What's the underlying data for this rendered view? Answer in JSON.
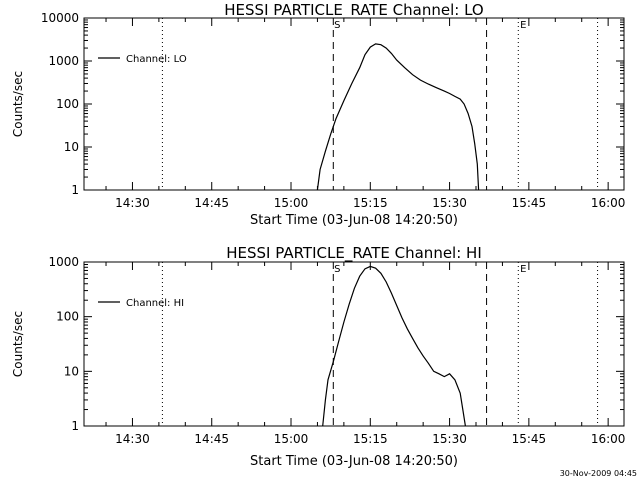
{
  "footer_text": "30-Nov-2009 04:45",
  "chart_data": [
    {
      "type": "line",
      "title": "HESSI PARTICLE_RATE Channel: LO",
      "xlabel": "Start Time (03-Jun-08 14:20:50)",
      "ylabel": "Counts/sec",
      "y_scale": "log",
      "ylim": [
        1,
        10000
      ],
      "xlim": [
        "14:20:50",
        "16:03:00"
      ],
      "x_ticks": [
        "14:30",
        "14:45",
        "15:00",
        "15:15",
        "15:30",
        "15:45",
        "16:00"
      ],
      "y_ticks": [
        "1",
        "10",
        "100",
        "1000",
        "10000"
      ],
      "legend": {
        "label": "Channel: LO",
        "position": "top-left"
      },
      "markers": {
        "start": "S",
        "end": "E"
      },
      "vlines_dashed": [
        "15:08:00",
        "15:37:00"
      ],
      "vlines_dotted": [
        "14:35:40",
        "15:43:00",
        "15:58:00"
      ],
      "series": [
        {
          "name": "Channel: LO",
          "points": [
            [
              "15:05:00",
              1
            ],
            [
              "15:05:30",
              3
            ],
            [
              "15:06:30",
              8
            ],
            [
              "15:07:30",
              20
            ],
            [
              "15:08:30",
              45
            ],
            [
              "15:10:00",
              120
            ],
            [
              "15:11:30",
              300
            ],
            [
              "15:13:00",
              700
            ],
            [
              "15:14:00",
              1400
            ],
            [
              "15:15:00",
              2100
            ],
            [
              "15:16:00",
              2500
            ],
            [
              "15:17:00",
              2400
            ],
            [
              "15:18:00",
              2000
            ],
            [
              "15:19:00",
              1500
            ],
            [
              "15:20:00",
              1050
            ],
            [
              "15:21:30",
              700
            ],
            [
              "15:23:00",
              480
            ],
            [
              "15:24:30",
              360
            ],
            [
              "15:26:00",
              290
            ],
            [
              "15:27:30",
              240
            ],
            [
              "15:29:00",
              200
            ],
            [
              "15:30:00",
              175
            ],
            [
              "15:31:00",
              150
            ],
            [
              "15:32:00",
              130
            ],
            [
              "15:32:45",
              100
            ],
            [
              "15:33:30",
              60
            ],
            [
              "15:34:15",
              30
            ],
            [
              "15:34:45",
              12
            ],
            [
              "15:35:15",
              4
            ],
            [
              "15:35:30",
              1
            ]
          ]
        }
      ]
    },
    {
      "type": "line",
      "title": "HESSI PARTICLE_RATE Channel: HI",
      "xlabel": "Start Time (03-Jun-08 14:20:50)",
      "ylabel": "Counts/sec",
      "y_scale": "log",
      "ylim": [
        1,
        1000
      ],
      "xlim": [
        "14:20:50",
        "16:03:00"
      ],
      "x_ticks": [
        "14:30",
        "14:45",
        "15:00",
        "15:15",
        "15:30",
        "15:45",
        "16:00"
      ],
      "y_ticks": [
        "1",
        "10",
        "100",
        "1000"
      ],
      "legend": {
        "label": "Channel: HI",
        "position": "top-left"
      },
      "markers": {
        "start": "S",
        "end": "E"
      },
      "vlines_dashed": [
        "15:08:00",
        "15:37:00"
      ],
      "vlines_dotted": [
        "14:35:40",
        "15:43:00",
        "15:58:00"
      ],
      "series": [
        {
          "name": "Channel: HI",
          "points": [
            [
              "15:06:00",
              1
            ],
            [
              "15:06:30",
              3
            ],
            [
              "15:07:00",
              7
            ],
            [
              "15:08:00",
              15
            ],
            [
              "15:09:00",
              35
            ],
            [
              "15:10:00",
              80
            ],
            [
              "15:11:00",
              170
            ],
            [
              "15:12:00",
              330
            ],
            [
              "15:13:00",
              550
            ],
            [
              "15:14:00",
              750
            ],
            [
              "15:15:00",
              830
            ],
            [
              "15:16:00",
              770
            ],
            [
              "15:17:00",
              620
            ],
            [
              "15:18:00",
              430
            ],
            [
              "15:19:00",
              270
            ],
            [
              "15:20:00",
              160
            ],
            [
              "15:21:00",
              95
            ],
            [
              "15:22:00",
              60
            ],
            [
              "15:23:00",
              40
            ],
            [
              "15:24:00",
              27
            ],
            [
              "15:25:00",
              19
            ],
            [
              "15:26:00",
              14
            ],
            [
              "15:27:00",
              10
            ],
            [
              "15:28:00",
              9
            ],
            [
              "15:29:00",
              8
            ],
            [
              "15:30:00",
              9
            ],
            [
              "15:31:00",
              7
            ],
            [
              "15:32:00",
              4
            ],
            [
              "15:32:30",
              2
            ],
            [
              "15:33:00",
              1
            ]
          ]
        }
      ]
    }
  ]
}
